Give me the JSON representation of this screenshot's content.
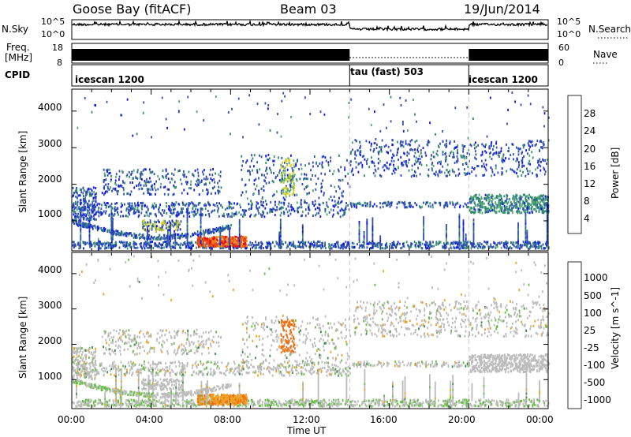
{
  "header": {
    "site": "Goose Bay (fitACF)",
    "beam": "Beam 03",
    "date": "19/Jun/2014"
  },
  "panels": {
    "nsky_label": "N.Sky",
    "nsearch_label": "N.Search",
    "nsky_ticks": [
      "10^5",
      "10^0"
    ],
    "nsearch_ticks": [
      "10^5",
      "10^0"
    ],
    "freq_label_1": "Freq.",
    "freq_label_2": "[MHz]",
    "freq_ticks": [
      "18",
      "8"
    ],
    "nave_label": "Nave",
    "nave_ticks": [
      "60",
      "0"
    ],
    "cpid_label": "CPID",
    "cpid_segments": [
      {
        "name": "icescan 1200",
        "start": 0,
        "end": 14
      },
      {
        "name": "tau (fast) 503",
        "start": 14,
        "end": 20
      },
      {
        "name": "icescan 1200",
        "start": 20,
        "end": 24
      }
    ]
  },
  "chart_data": [
    {
      "type": "heatmap",
      "title": "",
      "xlabel": "Time UT",
      "ylabel": "Slant Range [km]",
      "xlim": [
        0,
        24
      ],
      "ylim": [
        180,
        4600
      ],
      "x_ticks": [
        "00:00",
        "04:00",
        "08:00",
        "12:00",
        "16:00",
        "20:00",
        "00:00"
      ],
      "y_ticks": [
        1000,
        2000,
        3000,
        4000
      ],
      "colorbar": {
        "label": "Power [dB]",
        "ticks": [
          "4",
          "8",
          "12",
          "16",
          "20",
          "24",
          "28"
        ],
        "colors": [
          "#0c12f0",
          "#2f4fb0",
          "#2e8a70",
          "#52a86e",
          "#d8d020",
          "#f08a18",
          "#f04810",
          "#e80a10"
        ]
      },
      "features": [
        {
          "name": "ground scatter band",
          "x": [
            0,
            24
          ],
          "range_km": [
            250,
            450
          ]
        },
        {
          "name": "enhanced echo patch",
          "x": [
            6.3,
            8.8
          ],
          "range_km": [
            280,
            560
          ]
        },
        {
          "name": "mid-range band",
          "x": [
            0,
            14
          ],
          "range_km": [
            1100,
            1500
          ]
        },
        {
          "name": "far-range band",
          "x": [
            14,
            24
          ],
          "range_km": [
            2300,
            3200
          ]
        }
      ]
    },
    {
      "type": "heatmap",
      "title": "",
      "xlabel": "Time UT",
      "ylabel": "Slant Range [km]",
      "xlim": [
        0,
        24
      ],
      "ylim": [
        180,
        4600
      ],
      "x_ticks": [
        "00:00",
        "04:00",
        "08:00",
        "12:00",
        "16:00",
        "20:00",
        "00:00"
      ],
      "y_ticks": [
        1000,
        2000,
        3000,
        4000
      ],
      "colorbar": {
        "label": "Velocity [m s^-1]",
        "ticks": [
          "1000",
          "500",
          "100",
          "25",
          "-25",
          "-100",
          "-500",
          "-1000"
        ],
        "colors": [
          "#2030b8",
          "#3a6ec8",
          "#3a8c4a",
          "#62c040",
          "#bbbbbb",
          "#f0a020",
          "#f07010",
          "#f03a10",
          "#e80a10"
        ]
      }
    }
  ],
  "colors": {
    "background": "#ffffff",
    "axis": "#000000",
    "ground_scatter": "#bbbbbb"
  }
}
